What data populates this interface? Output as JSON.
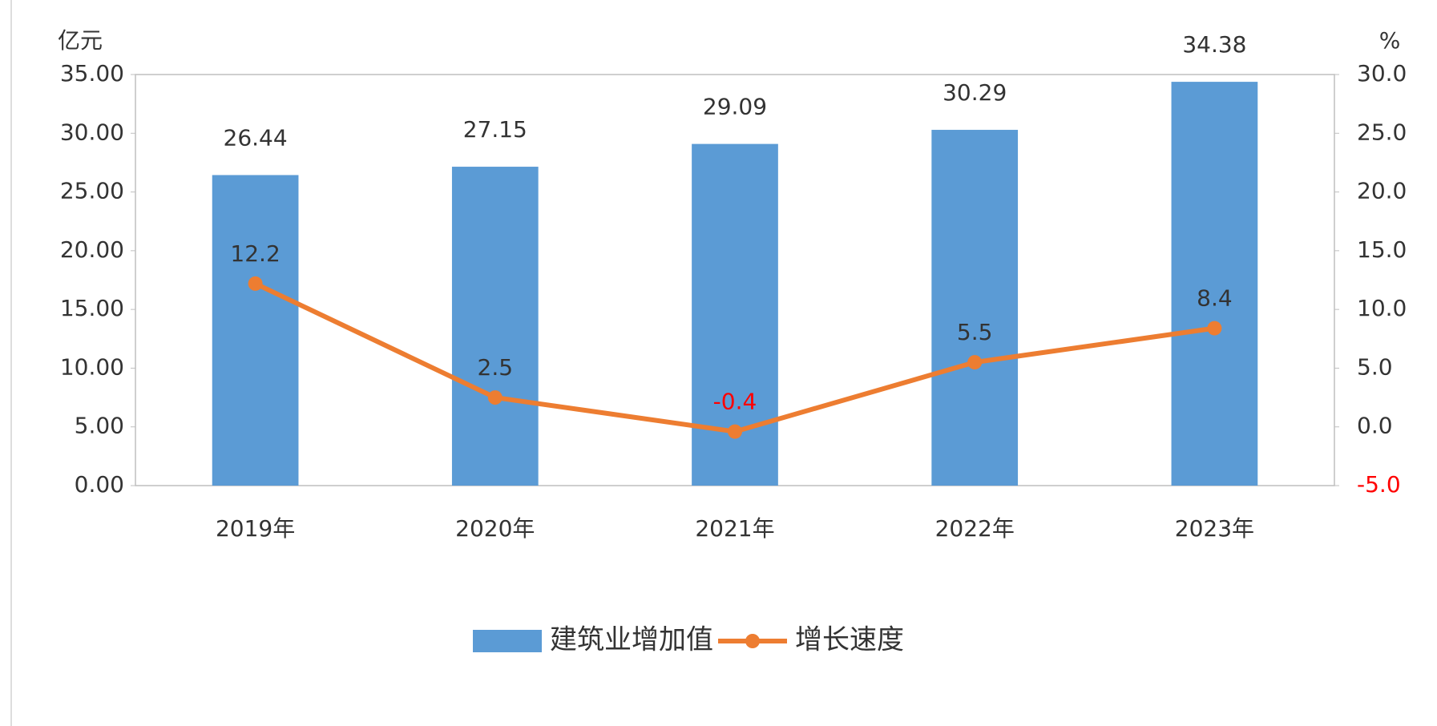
{
  "chart_data": {
    "type": "bar",
    "y_label": "亿元",
    "y2_label": "%",
    "categories": [
      "2019年",
      "2020年",
      "2021年",
      "2022年",
      "2023年"
    ],
    "series": [
      {
        "name": "建筑业增加值",
        "type": "bar",
        "color": "#5b9bd5",
        "values": [
          26.44,
          27.15,
          29.09,
          30.29,
          34.38
        ]
      },
      {
        "name": "增长速度",
        "type": "line",
        "axis": "y2",
        "color": "#ed7d31",
        "values": [
          12.2,
          2.5,
          -0.4,
          5.5,
          8.4
        ]
      }
    ],
    "ylim": [
      0,
      35
    ],
    "yticks": [
      {
        "value": 0,
        "label": "0.00"
      },
      {
        "value": 5,
        "label": "5.00"
      },
      {
        "value": 10,
        "label": "10.00"
      },
      {
        "value": 15,
        "label": "15.00"
      },
      {
        "value": 20,
        "label": "20.00"
      },
      {
        "value": 25,
        "label": "25.00"
      },
      {
        "value": 30,
        "label": "30.00"
      },
      {
        "value": 35,
        "label": "35.00"
      }
    ],
    "y2lim": [
      -5,
      30
    ],
    "y2ticks": [
      {
        "value": -5,
        "label": "-5.0"
      },
      {
        "value": 0,
        "label": "0.0"
      },
      {
        "value": 5,
        "label": "5.0"
      },
      {
        "value": 10,
        "label": "10.0"
      },
      {
        "value": 15,
        "label": "15.0"
      },
      {
        "value": 20,
        "label": "20.0"
      },
      {
        "value": 25,
        "label": "25.0"
      },
      {
        "value": 30,
        "label": "30.0"
      }
    ],
    "negative_color": "#ff0000",
    "legend": "bottom"
  }
}
